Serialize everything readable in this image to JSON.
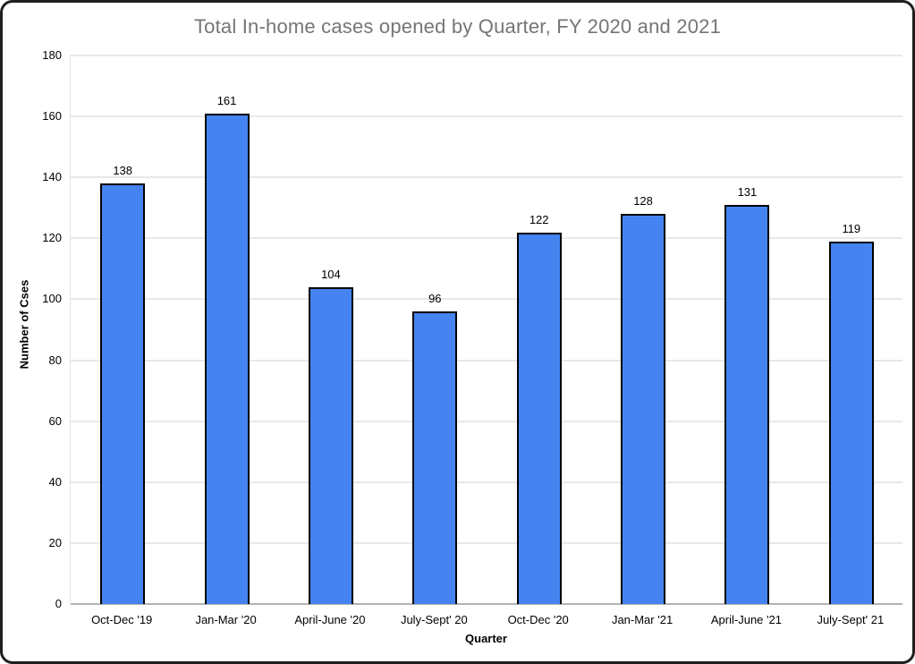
{
  "chart_data": {
    "type": "bar",
    "title": "Total In-home cases opened by Quarter, FY 2020 and 2021",
    "categories": [
      "Oct-Dec '19",
      "Jan-Mar '20",
      "April-June '20",
      "July-Sept' 20",
      "Oct-Dec '20",
      "Jan-Mar '21",
      "April-June '21",
      "July-Sept' 21"
    ],
    "values": [
      138,
      161,
      104,
      96,
      122,
      128,
      131,
      119
    ],
    "xlabel": "Quarter",
    "ylabel": "Number of Cses",
    "ylim": [
      0,
      180
    ],
    "ytick_step": 20,
    "grid": true,
    "legend": "none",
    "colors": {
      "bar_fill": "#4584f0",
      "bar_border": "#000000",
      "title_text": "#757575",
      "label_text": "#000000",
      "gridline": "#e8e8e8",
      "axis_line": "#b3b3b3",
      "frame_border": "#1f1f1f"
    }
  }
}
